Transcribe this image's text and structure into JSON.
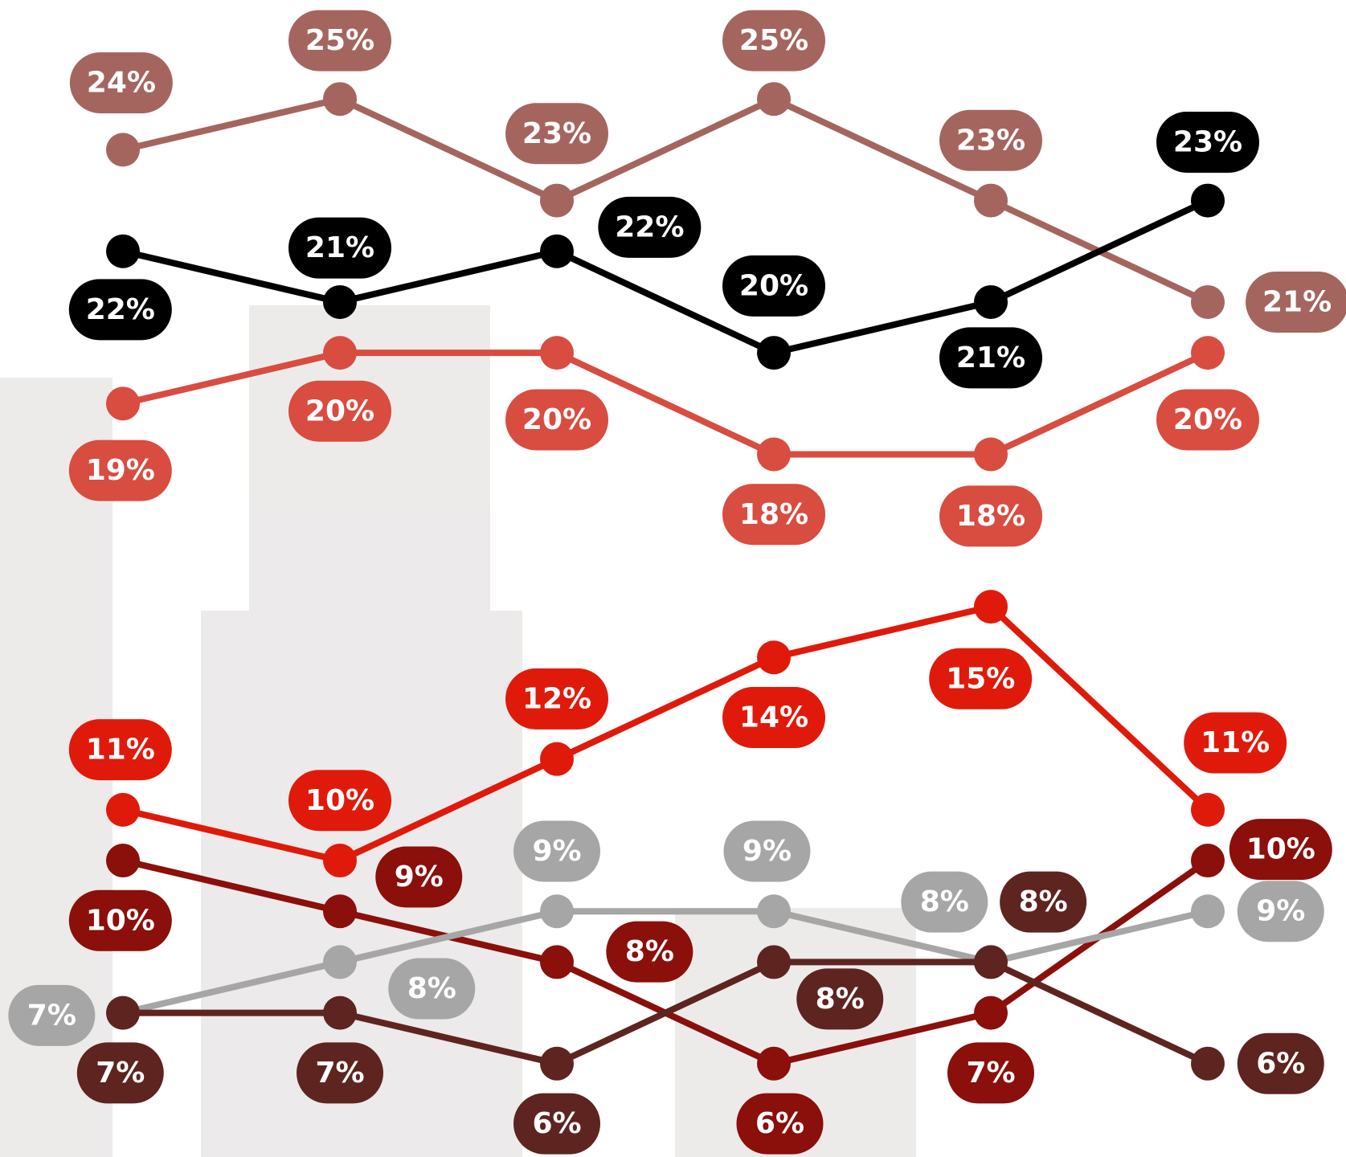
{
  "chart_data": {
    "type": "line",
    "categories": [
      null,
      null,
      null,
      null,
      null,
      null
    ],
    "ylim": [
      5,
      26
    ],
    "series": [
      {
        "color": "#a5655f",
        "values": [
          24,
          25,
          23,
          25,
          23,
          21
        ],
        "value_labels": [
          "24%",
          "25%",
          "23%",
          "25%",
          "23%",
          "21%"
        ]
      },
      {
        "color": "#000000",
        "values": [
          22,
          21,
          22,
          20,
          21,
          23
        ],
        "value_labels": [
          "22%",
          "21%",
          "22%",
          "20%",
          "21%",
          "23%"
        ]
      },
      {
        "color": "#d94c40",
        "values": [
          19,
          20,
          20,
          18,
          18,
          20
        ],
        "value_labels": [
          "19%",
          "20%",
          "20%",
          "18%",
          "18%",
          "20%"
        ]
      },
      {
        "color": "#e01a0a",
        "values": [
          11,
          10,
          12,
          14,
          15,
          11
        ],
        "value_labels": [
          "11%",
          "10%",
          "12%",
          "14%",
          "15%",
          "11%"
        ]
      },
      {
        "color": "#8b0f0a",
        "values": [
          10,
          9,
          8,
          6,
          7,
          10
        ],
        "value_labels": [
          "10%",
          "9%",
          "8%",
          "6%",
          "7%",
          "10%"
        ]
      },
      {
        "color": "#a6a6a6",
        "values": [
          7,
          8,
          9,
          9,
          8,
          9
        ],
        "value_labels": [
          "7%",
          "8%",
          "9%",
          "9%",
          "8%",
          "9%"
        ]
      },
      {
        "color": "#5e2420",
        "values": [
          7,
          7,
          6,
          8,
          8,
          6
        ],
        "value_labels": [
          "7%",
          "7%",
          "6%",
          "8%",
          "8%",
          "6%"
        ]
      }
    ]
  }
}
